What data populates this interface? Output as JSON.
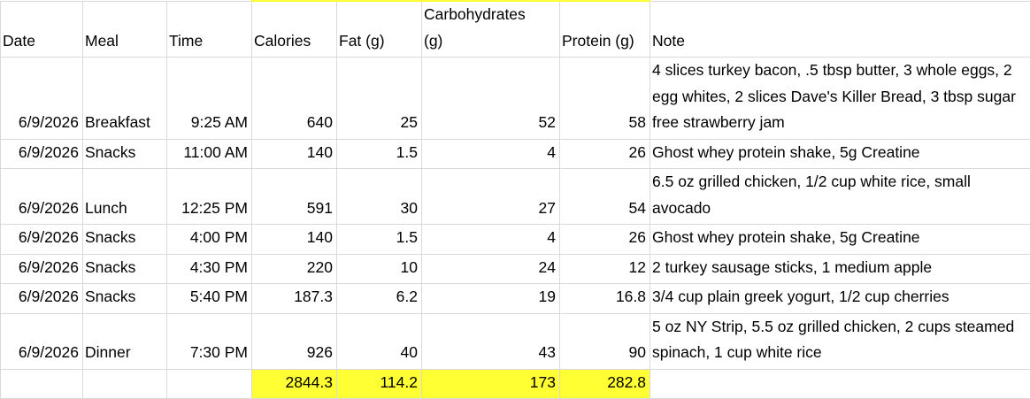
{
  "table": {
    "header": [
      "Date",
      "Meal",
      "Time",
      "Calories",
      "Fat (g)",
      "Carbohydrates (g)",
      "Protein (g)",
      "Note"
    ],
    "rows": [
      [
        "6/9/2026",
        "Breakfast",
        "9:25 AM",
        "640",
        "25",
        "52",
        "58",
        "4 slices turkey bacon, .5 tbsp butter, 3 whole eggs, 2 egg whites, 2 slices Dave's Killer Bread, 3 tbsp sugar free strawberry jam"
      ],
      [
        "6/9/2026",
        "Snacks",
        "11:00 AM",
        "140",
        "1.5",
        "4",
        "26",
        "Ghost whey protein shake, 5g Creatine"
      ],
      [
        "6/9/2026",
        "Lunch",
        "12:25 PM",
        "591",
        "30",
        "27",
        "54",
        "6.5 oz grilled chicken, 1/2 cup white rice, small avocado"
      ],
      [
        "6/9/2026",
        "Snacks",
        "4:00 PM",
        "140",
        "1.5",
        "4",
        "26",
        "Ghost whey protein shake, 5g Creatine"
      ],
      [
        "6/9/2026",
        "Snacks",
        "4:30 PM",
        "220",
        "10",
        "24",
        "12",
        "2 turkey sausage sticks, 1 medium apple"
      ],
      [
        "6/9/2026",
        "Snacks",
        "5:40 PM",
        "187.3",
        "6.2",
        "19",
        "16.8",
        "3/4 cup plain greek yogurt, 1/2 cup cherries"
      ],
      [
        "6/9/2026",
        "Dinner",
        "7:30 PM",
        "926",
        "40",
        "43",
        "90",
        "5 oz NY Strip, 5.5 oz grilled chicken, 2 cups steamed spinach, 1 cup white rice"
      ]
    ],
    "totals": [
      "2844.3",
      "114.2",
      "173",
      "282.8"
    ]
  }
}
